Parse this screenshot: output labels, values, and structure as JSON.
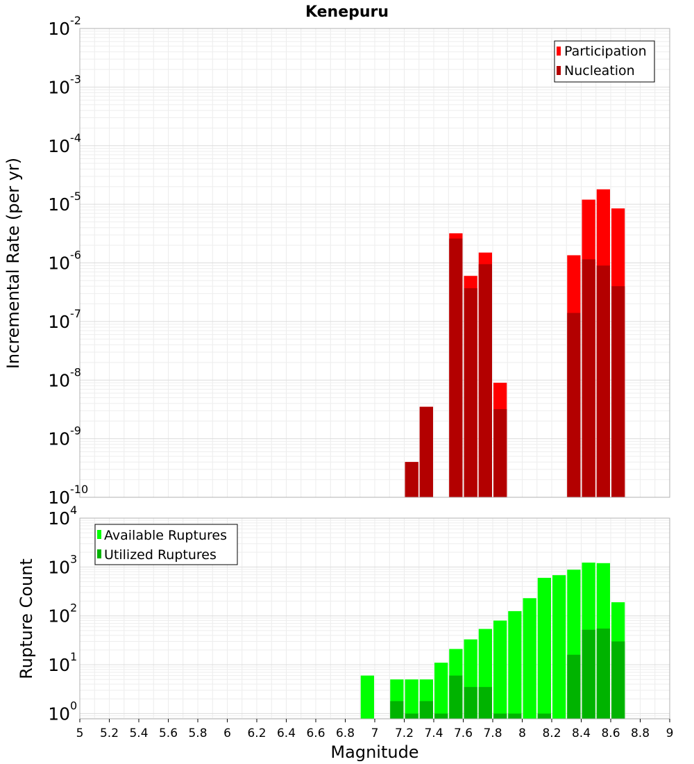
{
  "title": "Kenepuru",
  "chart_data": [
    {
      "type": "bar",
      "title": "Kenepuru",
      "xlabel": "Magnitude",
      "ylabel": "Incremental Rate (per yr)",
      "yscale": "log",
      "xlim": [
        5,
        9
      ],
      "ylim": [
        1e-10,
        0.01
      ],
      "bin_width": 0.1,
      "grid": true,
      "legend_position": "top-right",
      "x_ticks": [
        "5",
        "5.2",
        "5.4",
        "5.6",
        "5.8",
        "6",
        "6.2",
        "6.4",
        "6.6",
        "6.8",
        "7",
        "7.2",
        "7.4",
        "7.6",
        "7.8",
        "8",
        "8.2",
        "8.4",
        "8.6",
        "8.8",
        "9"
      ],
      "y_ticks": [
        {
          "base": "10",
          "exp": "-2"
        },
        {
          "base": "10",
          "exp": "-3"
        },
        {
          "base": "10",
          "exp": "-4"
        },
        {
          "base": "10",
          "exp": "-5"
        },
        {
          "base": "10",
          "exp": "-6"
        },
        {
          "base": "10",
          "exp": "-7"
        },
        {
          "base": "10",
          "exp": "-8"
        },
        {
          "base": "10",
          "exp": "-9"
        },
        {
          "base": "10",
          "exp": "-10"
        }
      ],
      "series": [
        {
          "name": "Participation",
          "color": "#ff0000",
          "x": [
            7.25,
            7.35,
            7.55,
            7.65,
            7.75,
            7.85,
            8.35,
            8.45,
            8.55,
            8.65
          ],
          "values": [
            4e-10,
            3.5e-09,
            3.2e-06,
            6e-07,
            1.5e-06,
            9e-09,
            1.35e-06,
            1.2e-05,
            1.8e-05,
            8.5e-06
          ]
        },
        {
          "name": "Nucleation",
          "color": "#b30000",
          "x": [
            7.25,
            7.35,
            7.55,
            7.65,
            7.75,
            7.85,
            8.35,
            8.45,
            8.55,
            8.65
          ],
          "values": [
            4e-10,
            3.5e-09,
            2.6e-06,
            3.7e-07,
            9.5e-07,
            3.2e-09,
            1.4e-07,
            1.15e-06,
            9e-07,
            4e-07
          ]
        }
      ]
    },
    {
      "type": "bar",
      "xlabel": "Magnitude",
      "ylabel": "Rupture Count",
      "yscale": "log",
      "xlim": [
        5,
        9
      ],
      "ylim": [
        0.78,
        10000.0
      ],
      "bin_width": 0.1,
      "grid": true,
      "legend_position": "top-left",
      "x_ticks": [
        "5",
        "5.2",
        "5.4",
        "5.6",
        "5.8",
        "6",
        "6.2",
        "6.4",
        "6.6",
        "6.8",
        "7",
        "7.2",
        "7.4",
        "7.6",
        "7.8",
        "8",
        "8.2",
        "8.4",
        "8.6",
        "8.8",
        "9"
      ],
      "y_ticks": [
        {
          "base": "10",
          "exp": "4"
        },
        {
          "base": "10",
          "exp": "3"
        },
        {
          "base": "10",
          "exp": "2"
        },
        {
          "base": "10",
          "exp": "1"
        },
        {
          "base": "10",
          "exp": "0"
        }
      ],
      "series": [
        {
          "name": "Available Ruptures",
          "color": "#00ff00",
          "x": [
            6.95,
            7.15,
            7.25,
            7.35,
            7.45,
            7.55,
            7.65,
            7.75,
            7.85,
            7.95,
            8.05,
            8.15,
            8.25,
            8.35,
            8.45,
            8.55,
            8.65
          ],
          "values": [
            6,
            5,
            5,
            5,
            11,
            21,
            33,
            54,
            80,
            125,
            230,
            600,
            680,
            880,
            1230,
            1200,
            190
          ]
        },
        {
          "name": "Utilized Ruptures",
          "color": "#00b300",
          "x": [
            7.15,
            7.25,
            7.35,
            7.45,
            7.55,
            7.65,
            7.75,
            7.85,
            7.95,
            8.15,
            8.35,
            8.45,
            8.55,
            8.65
          ],
          "values": [
            1.8,
            1,
            1.8,
            1,
            6,
            3.5,
            3.5,
            1,
            1,
            1,
            16,
            52,
            55,
            30
          ]
        }
      ]
    }
  ]
}
